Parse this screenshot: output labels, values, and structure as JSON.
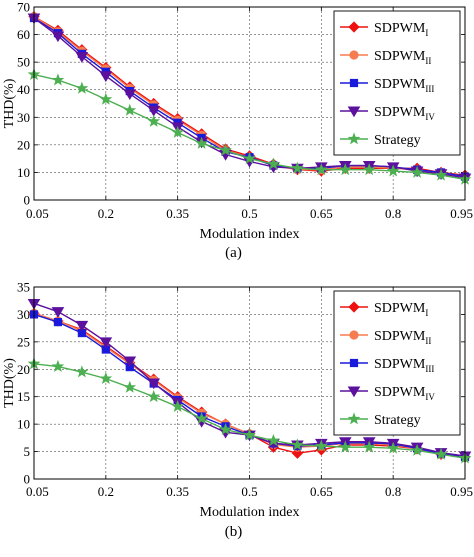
{
  "colors": {
    "SDPWM_I": "#ee1111",
    "SDPWM_II": "#f57c50",
    "SDPWM_III": "#1a1adc",
    "SDPWM_IV": "#5b119e",
    "Strategy": "#4caf50"
  },
  "chart_data": [
    {
      "type": "line",
      "panel_label": "(a)",
      "xlabel": "Modulation index",
      "ylabel": "THD(%)",
      "xlim": [
        0.05,
        0.95
      ],
      "ylim": [
        0,
        70
      ],
      "xticks": [
        "0.05",
        "0.2",
        "0.35",
        "0.5",
        "0.65",
        "0.8",
        "0.95"
      ],
      "yticks": [
        "0",
        "10",
        "20",
        "30",
        "40",
        "50",
        "60",
        "70"
      ],
      "grid": true,
      "legend_position": "top-right",
      "x": [
        0.05,
        0.1,
        0.15,
        0.2,
        0.25,
        0.3,
        0.35,
        0.4,
        0.45,
        0.5,
        0.55,
        0.6,
        0.65,
        0.7,
        0.75,
        0.8,
        0.85,
        0.9,
        0.95
      ],
      "series": [
        {
          "name": "SDPWM",
          "sub": "I",
          "marker": "diamond",
          "color_key": "SDPWM_I",
          "values": [
            66.5,
            61.5,
            54.5,
            48,
            41,
            35,
            29.5,
            24,
            18.5,
            16,
            13,
            11,
            10.5,
            11.5,
            11.5,
            11.5,
            11.5,
            10,
            9
          ]
        },
        {
          "name": "SDPWM",
          "sub": "II",
          "marker": "circle",
          "color_key": "SDPWM_II",
          "values": [
            66.5,
            61,
            54,
            47.5,
            40.5,
            34.5,
            29,
            23.5,
            18,
            15.5,
            12.5,
            11,
            11,
            12,
            12,
            11.5,
            11,
            10,
            8.5
          ]
        },
        {
          "name": "SDPWM",
          "sub": "III",
          "marker": "square",
          "color_key": "SDPWM_III",
          "values": [
            66,
            60.5,
            53,
            46.5,
            39.5,
            33.5,
            28,
            22.5,
            17.5,
            15.5,
            12.5,
            11.5,
            11.5,
            12.5,
            12.5,
            12,
            11,
            10,
            8.5
          ]
        },
        {
          "name": "SDPWM",
          "sub": "IV",
          "marker": "triangle-down",
          "color_key": "SDPWM_IV",
          "values": [
            66,
            59.5,
            52,
            45,
            38.5,
            32.5,
            26.5,
            21,
            16.5,
            14,
            12,
            11.5,
            12,
            12.5,
            12.5,
            12,
            10.5,
            9.5,
            8
          ]
        },
        {
          "name": "Strategy",
          "sub": "",
          "marker": "star",
          "color_key": "Strategy",
          "values": [
            45.5,
            43.5,
            40.5,
            36.5,
            32.5,
            28.5,
            24.5,
            20.5,
            18,
            15,
            13,
            11.5,
            11,
            11,
            11,
            10.5,
            10,
            9,
            7.5
          ]
        }
      ]
    },
    {
      "type": "line",
      "panel_label": "(b)",
      "xlabel": "Modulation index",
      "ylabel": "THD(%)",
      "xlim": [
        0.05,
        0.95
      ],
      "ylim": [
        0,
        35
      ],
      "xticks": [
        "0.05",
        "0.2",
        "0.35",
        "0.5",
        "0.65",
        "0.8",
        "0.95"
      ],
      "yticks": [
        "0",
        "5",
        "10",
        "15",
        "20",
        "25",
        "30",
        "35"
      ],
      "grid": true,
      "legend_position": "top-right",
      "x": [
        0.05,
        0.1,
        0.15,
        0.2,
        0.25,
        0.3,
        0.35,
        0.4,
        0.45,
        0.5,
        0.55,
        0.6,
        0.65,
        0.7,
        0.75,
        0.8,
        0.85,
        0.9,
        0.95
      ],
      "series": [
        {
          "name": "SDPWM",
          "sub": "I",
          "marker": "diamond",
          "color_key": "SDPWM_I",
          "values": [
            30.2,
            28.8,
            27.2,
            24.2,
            21.2,
            18.2,
            15,
            12.2,
            10,
            8.2,
            5.8,
            4.7,
            5.3,
            6.2,
            6.2,
            6,
            5.5,
            4.5,
            4
          ]
        },
        {
          "name": "SDPWM",
          "sub": "II",
          "marker": "circle",
          "color_key": "SDPWM_II",
          "values": [
            30.2,
            28.8,
            27,
            24,
            21,
            18,
            14.8,
            12,
            10,
            8.2,
            6.3,
            5.8,
            6,
            6.5,
            6.5,
            6.2,
            5.5,
            4.5,
            4
          ]
        },
        {
          "name": "SDPWM",
          "sub": "III",
          "marker": "square",
          "color_key": "SDPWM_III",
          "values": [
            30,
            28.6,
            26.6,
            23.6,
            20.4,
            17.4,
            14.4,
            11.4,
            9.6,
            8,
            6.5,
            6,
            6.2,
            6.6,
            6.6,
            6.4,
            5.6,
            4.6,
            4
          ]
        },
        {
          "name": "SDPWM",
          "sub": "IV",
          "marker": "triangle-down",
          "color_key": "SDPWM_IV",
          "values": [
            32,
            30.5,
            28,
            25,
            21.5,
            17.5,
            14,
            10.5,
            8.5,
            8,
            6.5,
            6.2,
            6.5,
            6.8,
            6.8,
            6.5,
            5.8,
            4.8,
            4.2
          ]
        },
        {
          "name": "Strategy",
          "sub": "",
          "marker": "star",
          "color_key": "Strategy",
          "values": [
            21,
            20.5,
            19.5,
            18.3,
            16.7,
            15,
            13.2,
            11,
            9,
            8,
            7,
            6.2,
            6,
            5.8,
            5.8,
            5.6,
            5.2,
            4.5,
            3.8
          ]
        }
      ]
    }
  ]
}
